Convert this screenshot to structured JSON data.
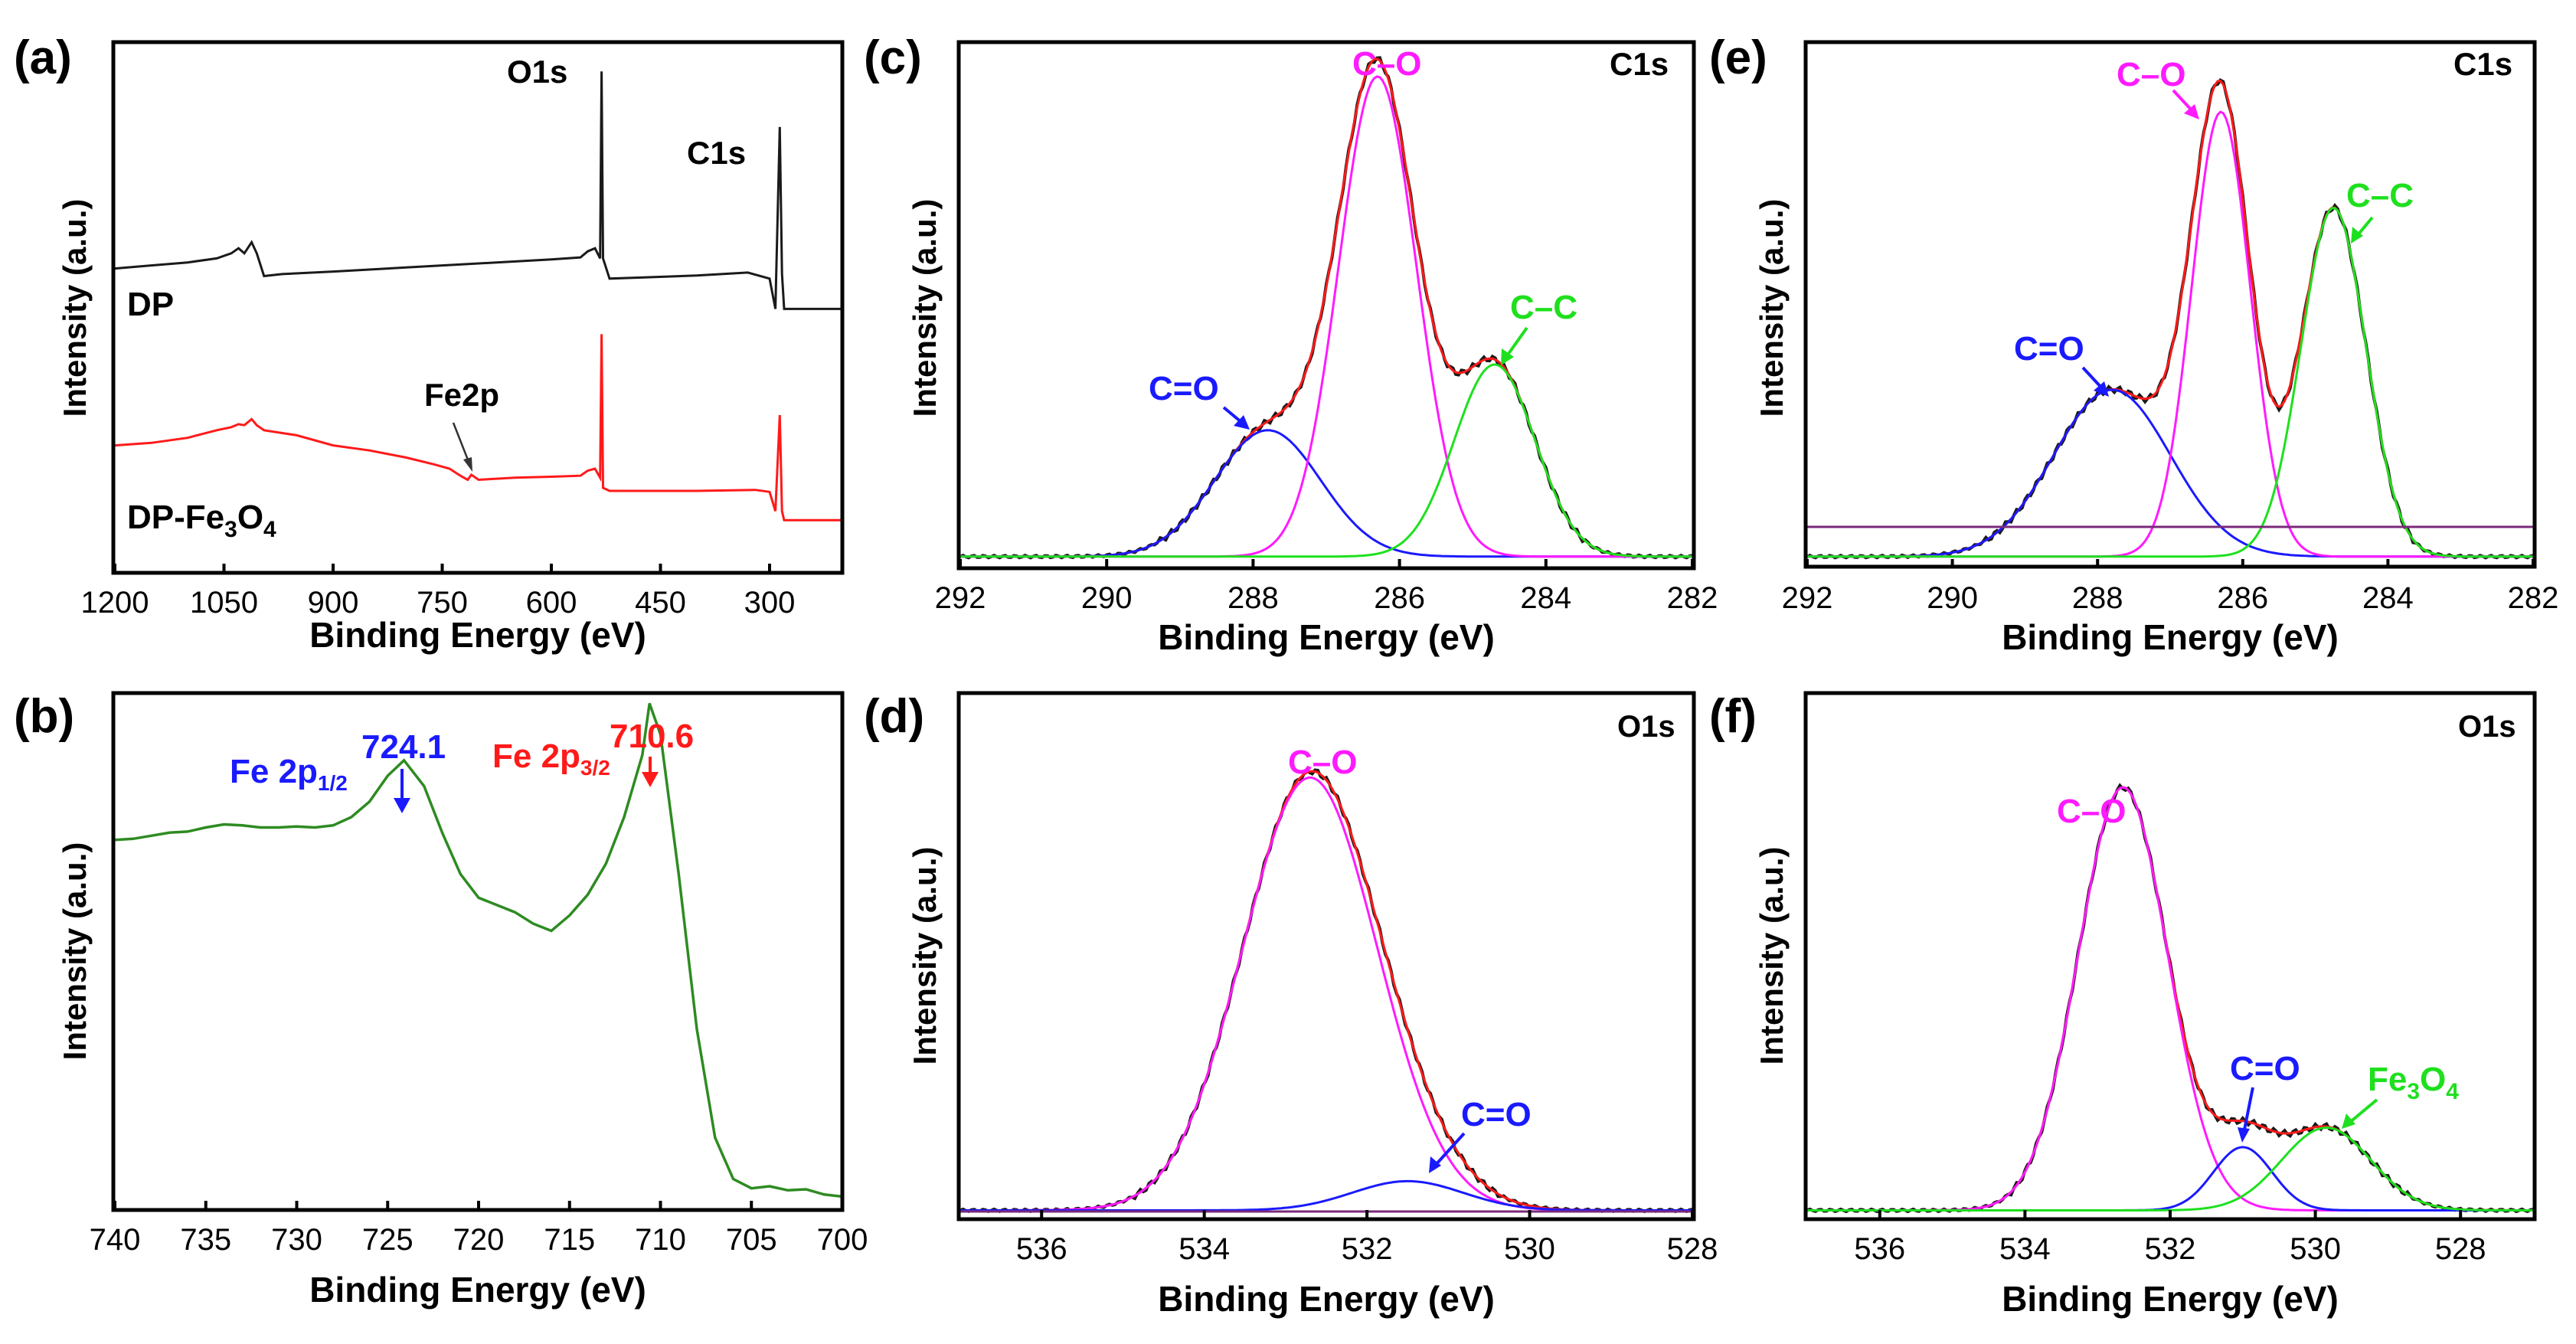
{
  "figure": {
    "colors": {
      "axis": "#000000",
      "black": "#1a1a1a",
      "red": "#ff1a1a",
      "blue": "#1a1aff",
      "magenta": "#ff1aff",
      "green": "#1ee01e",
      "olive": "#2e8b22",
      "purple": "#7a2a7a"
    }
  },
  "chart_data": [
    {
      "id": "a",
      "panel_label": "(a)",
      "type": "line",
      "title": "",
      "xlabel": "Binding Energy (eV)",
      "ylabel": "Intensity (a.u.)",
      "xlim": [
        1200,
        200
      ],
      "ylim": [
        0,
        100
      ],
      "xticks": [
        1200,
        1050,
        900,
        750,
        600,
        450,
        300
      ],
      "xtick_labels": [
        "1200",
        "1050",
        "900",
        "750",
        "600",
        "450",
        "300"
      ],
      "series": [
        {
          "name": "DP",
          "color": "black",
          "points": [
            [
              1200,
              59.0
            ],
            [
              1150,
              59.6
            ],
            [
              1100,
              60.2
            ],
            [
              1060,
              61.0
            ],
            [
              1040,
              62.0
            ],
            [
              1030,
              63.0
            ],
            [
              1022,
              62.0
            ],
            [
              1012,
              64.2
            ],
            [
              1005,
              62.0
            ],
            [
              995,
              57.5
            ],
            [
              970,
              57.9
            ],
            [
              900,
              58.4
            ],
            [
              800,
              59.2
            ],
            [
              700,
              60.0
            ],
            [
              600,
              60.8
            ],
            [
              560,
              61.2
            ],
            [
              550,
              62.4
            ],
            [
              540,
              63.0
            ],
            [
              533,
              61.0
            ],
            [
              531,
              98.0
            ],
            [
              529,
              61.0
            ],
            [
              520,
              57.0
            ],
            [
              480,
              57.2
            ],
            [
              400,
              57.6
            ],
            [
              330,
              58.2
            ],
            [
              300,
              57.0
            ],
            [
              292,
              51.0
            ],
            [
              286,
              87.0
            ],
            [
              283,
              58.0
            ],
            [
              280,
              51.0
            ],
            [
              260,
              51.0
            ],
            [
              230,
              51.0
            ],
            [
              200,
              51.0
            ]
          ]
        },
        {
          "name": "DP-Fe₃O₄",
          "color": "red",
          "points": [
            [
              1200,
              24.0
            ],
            [
              1150,
              24.5
            ],
            [
              1100,
              25.5
            ],
            [
              1060,
              27.0
            ],
            [
              1040,
              27.6
            ],
            [
              1030,
              28.2
            ],
            [
              1022,
              28.0
            ],
            [
              1012,
              29.2
            ],
            [
              1005,
              28.0
            ],
            [
              995,
              27.0
            ],
            [
              950,
              26.0
            ],
            [
              900,
              24.0
            ],
            [
              850,
              23.0
            ],
            [
              800,
              21.6
            ],
            [
              760,
              20.2
            ],
            [
              740,
              19.4
            ],
            [
              725,
              18.0
            ],
            [
              715,
              17.2
            ],
            [
              710,
              18.2
            ],
            [
              700,
              17.2
            ],
            [
              650,
              17.6
            ],
            [
              600,
              17.8
            ],
            [
              560,
              18.0
            ],
            [
              550,
              19.0
            ],
            [
              540,
              19.4
            ],
            [
              533,
              17.6
            ],
            [
              531,
              46.0
            ],
            [
              529,
              15.6
            ],
            [
              520,
              15.0
            ],
            [
              480,
              15.0
            ],
            [
              400,
              15.0
            ],
            [
              320,
              15.2
            ],
            [
              300,
              14.8
            ],
            [
              292,
              11.0
            ],
            [
              286,
              30.0
            ],
            [
              283,
              11.0
            ],
            [
              280,
              9.2
            ],
            [
              240,
              9.2
            ],
            [
              200,
              9.2
            ]
          ]
        }
      ],
      "annotations": [
        {
          "text": "O1s",
          "x": 590,
          "y": 93
        },
        {
          "text": "C1s",
          "x": 345,
          "y": 78
        },
        {
          "text": "DP",
          "x": 1180,
          "y": 50
        },
        {
          "text": "Fe2p",
          "x": 750,
          "y": 33
        },
        {
          "text": "DP-Fe₃O₄",
          "x": 1180,
          "y": 8
        }
      ]
    },
    {
      "id": "b",
      "panel_label": "(b)",
      "type": "line",
      "title": "",
      "xlabel": "Binding Energy (eV)",
      "ylabel": "Intensity (a.u.)",
      "xlim": [
        740,
        700
      ],
      "ylim": [
        0,
        100
      ],
      "xticks": [
        740,
        735,
        730,
        725,
        720,
        715,
        710,
        705,
        700
      ],
      "xtick_labels": [
        "740",
        "735",
        "730",
        "725",
        "720",
        "715",
        "710",
        "705",
        "700"
      ],
      "series": [
        {
          "name": "Fe 2p",
          "color": "olive",
          "points": [
            [
              740,
              71.6
            ],
            [
              739,
              71.8
            ],
            [
              738,
              72.4
            ],
            [
              737,
              73.0
            ],
            [
              736,
              73.2
            ],
            [
              735,
              74.0
            ],
            [
              734,
              74.6
            ],
            [
              733,
              74.4
            ],
            [
              732,
              74.0
            ],
            [
              731,
              74.0
            ],
            [
              730,
              74.2
            ],
            [
              729,
              74.0
            ],
            [
              728,
              74.4
            ],
            [
              727,
              76.0
            ],
            [
              726,
              79.0
            ],
            [
              725,
              84.0
            ],
            [
              724.1,
              87.0
            ],
            [
              723,
              82.0
            ],
            [
              722,
              73.0
            ],
            [
              721,
              65.0
            ],
            [
              720,
              60.4
            ],
            [
              719,
              59.0
            ],
            [
              718,
              57.6
            ],
            [
              717,
              55.4
            ],
            [
              716,
              54.0
            ],
            [
              715,
              57.0
            ],
            [
              714,
              61.0
            ],
            [
              713,
              67.0
            ],
            [
              712,
              76.0
            ],
            [
              711,
              88.0
            ],
            [
              710.6,
              98.0
            ],
            [
              710,
              92.0
            ],
            [
              709,
              65.0
            ],
            [
              708,
              35.0
            ],
            [
              707,
              14.0
            ],
            [
              706,
              6.0
            ],
            [
              705,
              4.2
            ],
            [
              704,
              4.6
            ],
            [
              703,
              3.8
            ],
            [
              702,
              4.0
            ],
            [
              701,
              3.0
            ],
            [
              700,
              2.6
            ]
          ]
        }
      ],
      "annotations": [
        {
          "text": "724.1",
          "x": 724.1,
          "y": 87
        },
        {
          "text": "710.6",
          "x": 710.6,
          "y": 98
        },
        {
          "text": "Fe 2p₁/₂",
          "x": 728.5,
          "y": 95
        },
        {
          "text": "Fe 2p₃/₂",
          "x": 714.5,
          "y": 99
        }
      ]
    },
    {
      "id": "c",
      "panel_label": "(c)",
      "type": "line",
      "title": "C1s",
      "xlabel": "Binding Energy (eV)",
      "ylabel": "Intensity (a.u.)",
      "xlim": [
        292,
        282
      ],
      "ylim": [
        0,
        100
      ],
      "xticks": [
        292,
        290,
        288,
        286,
        284,
        282
      ],
      "xtick_labels": [
        "292",
        "290",
        "288",
        "286",
        "284",
        "282"
      ],
      "baseline": 2,
      "peaks": [
        {
          "label": "C=O",
          "center": 287.8,
          "height": 25,
          "fwhm": 1.7,
          "color": "blue"
        },
        {
          "label": "C–O",
          "center": 286.3,
          "height": 95,
          "fwhm": 1.25,
          "color": "magenta"
        },
        {
          "label": "C–C",
          "center": 284.7,
          "height": 38,
          "fwhm": 1.3,
          "color": "green"
        }
      ],
      "annotations": [
        {
          "text": "C–O",
          "x": 286.1,
          "y": 104
        },
        {
          "text": "C–C",
          "x": 283.5,
          "y": 56
        },
        {
          "text": "C=O",
          "x": 288.7,
          "y": 36
        }
      ]
    },
    {
      "id": "d",
      "panel_label": "(d)",
      "type": "line",
      "title": "O1s",
      "xlabel": "Binding Energy (eV)",
      "ylabel": "Intensity (a.u.)",
      "xlim": [
        537,
        528
      ],
      "ylim": [
        0,
        100
      ],
      "xticks": [
        536,
        534,
        532,
        530,
        528
      ],
      "xtick_labels": [
        "536",
        "534",
        "532",
        "530",
        "528"
      ],
      "baseline": 1.5,
      "peaks": [
        {
          "label": "C–O",
          "center": 532.7,
          "height": 89,
          "fwhm": 1.95,
          "color": "magenta"
        },
        {
          "label": "C=O",
          "center": 531.5,
          "height": 6,
          "fwhm": 1.6,
          "color": "blue"
        }
      ],
      "annotations": [
        {
          "text": "C–O",
          "x": 532.7,
          "y": 95
        },
        {
          "text": "C=O",
          "x": 530.2,
          "y": 21
        }
      ]
    },
    {
      "id": "e",
      "panel_label": "(e)",
      "type": "line",
      "title": "C1s",
      "xlabel": "Binding Energy (eV)",
      "ylabel": "Intensity (a.u.)",
      "xlim": [
        292,
        282
      ],
      "ylim": [
        0,
        100
      ],
      "xticks": [
        292,
        290,
        288,
        286,
        284,
        282
      ],
      "xtick_labels": [
        "292",
        "290",
        "288",
        "286",
        "284",
        "282"
      ],
      "baseline": 2,
      "peaks": [
        {
          "label": "C=O",
          "center": 287.8,
          "height": 33,
          "fwhm": 1.9,
          "color": "blue"
        },
        {
          "label": "C–O",
          "center": 286.3,
          "height": 88,
          "fwhm": 0.95,
          "color": "magenta"
        },
        {
          "label": "C–C",
          "center": 284.75,
          "height": 69,
          "fwhm": 1.05,
          "color": "green"
        }
      ],
      "annotations": [
        {
          "text": "C–O",
          "x": 287.0,
          "y": 104
        },
        {
          "text": "C–C",
          "x": 284.3,
          "y": 81
        },
        {
          "text": "C=O",
          "x": 288.3,
          "y": 46
        }
      ]
    },
    {
      "id": "f",
      "panel_label": "(f)",
      "type": "line",
      "title": "O1s",
      "xlabel": "Binding Energy (eV)",
      "ylabel": "Intensity (a.u.)",
      "xlim": [
        537,
        527
      ],
      "ylim": [
        0,
        100
      ],
      "xticks": [
        536,
        534,
        532,
        530,
        528
      ],
      "xtick_labels": [
        "536",
        "534",
        "532",
        "530",
        "528"
      ],
      "baseline": 1.5,
      "peaks": [
        {
          "label": "C–O",
          "center": 532.65,
          "height": 87,
          "fwhm": 1.45,
          "color": "magenta"
        },
        {
          "label": "C=O",
          "center": 531.0,
          "height": 13,
          "fwhm": 0.95,
          "color": "blue"
        },
        {
          "label": "Fe₃O₄",
          "center": 529.85,
          "height": 17,
          "fwhm": 1.45,
          "color": "green"
        }
      ],
      "annotations": [
        {
          "text": "C–O",
          "x": 532.8,
          "y": 95
        },
        {
          "text": "C=O",
          "x": 531.0,
          "y": 33
        },
        {
          "text": "Fe₃O₄",
          "x": 528.7,
          "y": 31
        }
      ]
    }
  ]
}
